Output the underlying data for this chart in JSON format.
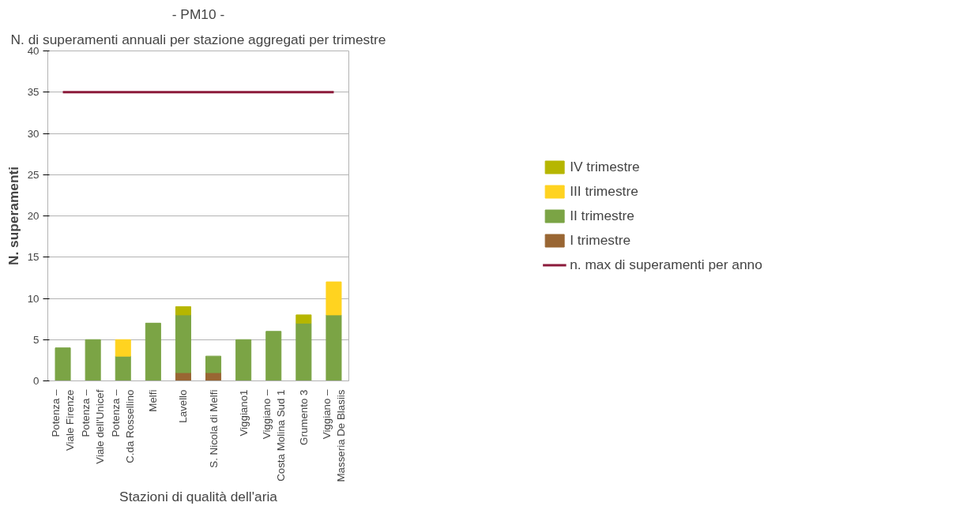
{
  "chart_data": {
    "type": "bar",
    "title": "- PM10 -",
    "subtitle": "N. di superamenti annuali per stazione aggregati per trimestre",
    "xlabel": "Stazioni di qualità dell'aria",
    "ylabel": "N. superamenti",
    "categories": [
      "Potenza –\nViale Firenze",
      "Potenza –\nViale dell'Unicef",
      "Potenza –\nC.da Rossellino",
      "Melfi",
      "Lavello",
      "S. Nicola di Melfi",
      "Viggiano1",
      "Viggiano –\nCosta Molina Sud 1",
      "Grumento 3",
      "Viggiano –\nMasseria De Blasiis"
    ],
    "stacked": true,
    "series": [
      {
        "name": "I trimestre",
        "color": "#996633",
        "values": [
          null,
          null,
          null,
          null,
          1,
          1,
          null,
          null,
          null,
          null
        ]
      },
      {
        "name": "II trimestre",
        "color": "#7ba445",
        "values": [
          4,
          5,
          3,
          7,
          7,
          2,
          5,
          6,
          7,
          8
        ]
      },
      {
        "name": "III trimestre",
        "color": "#ffd320",
        "values": [
          null,
          null,
          2,
          null,
          null,
          null,
          null,
          null,
          null,
          4
        ]
      },
      {
        "name": "IV trimestre",
        "color": "#b6b600",
        "values": [
          null,
          null,
          null,
          null,
          1,
          null,
          null,
          null,
          1,
          null
        ]
      },
      {
        "name": "n. max di superamenti per anno",
        "type": "line",
        "color": "#8b1a3a",
        "values": [
          35,
          35,
          35,
          35,
          35,
          35,
          35,
          35,
          35,
          35
        ]
      }
    ],
    "ylim": [
      0,
      40
    ],
    "yticks": [
      0,
      5,
      10,
      15,
      20,
      25,
      30,
      35,
      40
    ],
    "grid": "y",
    "legend": "right"
  }
}
